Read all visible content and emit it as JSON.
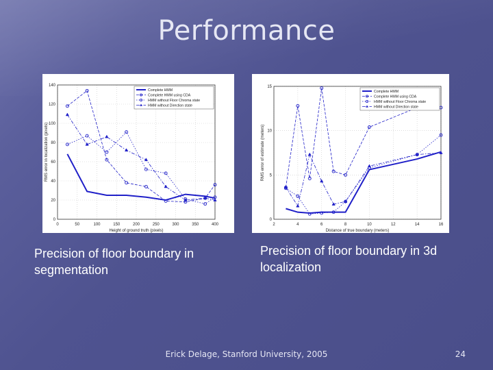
{
  "slide": {
    "title": "Performance",
    "caption_left": "Precision of floor boundary in segmentation",
    "caption_right": "Precision of floor boundary in 3d localization",
    "footer": "Erick Delage, Stanford University, 2005",
    "page_number": "24"
  },
  "colors": {
    "background": "#4f5390",
    "series": "#1f1fc8"
  },
  "chart_data": [
    {
      "type": "line",
      "xlabel": "Height of ground truth (pixels)",
      "ylabel": "RMS error in localization (pixels)",
      "xlim": [
        0,
        400
      ],
      "ylim": [
        0,
        140
      ],
      "xticks": [
        0,
        50,
        100,
        150,
        200,
        250,
        300,
        350,
        400
      ],
      "yticks": [
        0,
        20,
        40,
        60,
        80,
        100,
        120,
        140
      ],
      "grid": true,
      "legend_position": "top-right",
      "series": [
        {
          "name": "Complete HMM",
          "style": "solid",
          "marker": "none",
          "x": [
            25,
            75,
            125,
            175,
            225,
            275,
            325,
            375,
            400
          ],
          "y": [
            68,
            29,
            25,
            25,
            23,
            20,
            26,
            24,
            22
          ]
        },
        {
          "name": "Complete HMM using CDA",
          "style": "dashed",
          "marker": "circle",
          "x": [
            25,
            75,
            125,
            175,
            225,
            275,
            325,
            375,
            400
          ],
          "y": [
            118,
            134,
            62,
            38,
            34,
            19,
            18,
            22,
            36
          ]
        },
        {
          "name": "HMM without Floor Chroma state",
          "style": "dotted",
          "marker": "circle",
          "x": [
            25,
            75,
            125,
            175,
            225,
            275,
            325,
            375,
            400
          ],
          "y": [
            78,
            87,
            70,
            91,
            52,
            48,
            21,
            16,
            23
          ]
        },
        {
          "name": "HMM without Direction state",
          "style": "dashdot",
          "marker": "triangle",
          "x": [
            25,
            75,
            125,
            175,
            225,
            275,
            325,
            375,
            400
          ],
          "y": [
            109,
            78,
            86,
            72,
            62,
            34,
            20,
            22,
            20
          ]
        }
      ]
    },
    {
      "type": "line",
      "xlabel": "Distance of true boundary (meters)",
      "ylabel": "RMS error of estimate (meters)",
      "xlim": [
        2,
        16
      ],
      "ylim": [
        0,
        15
      ],
      "xticks": [
        2,
        4,
        6,
        8,
        10,
        12,
        14,
        16
      ],
      "yticks": [
        0,
        5,
        10,
        15
      ],
      "grid": true,
      "legend_position": "top-right",
      "series": [
        {
          "name": "Complete HMM",
          "style": "solid",
          "marker": "none",
          "x": [
            3,
            4,
            5,
            6,
            7,
            8,
            10,
            14,
            16
          ],
          "y": [
            1.2,
            0.8,
            0.7,
            0.8,
            0.8,
            0.8,
            5.6,
            6.8,
            7.6
          ]
        },
        {
          "name": "Complete HMM using CDA",
          "style": "dashed",
          "marker": "circle",
          "x": [
            3,
            4,
            5,
            6,
            7,
            8,
            10,
            14,
            16
          ],
          "y": [
            3.6,
            12.8,
            4.6,
            14.8,
            5.4,
            5.0,
            10.4,
            12.6,
            12.6
          ]
        },
        {
          "name": "HMM without Floor Chroma state",
          "style": "dotted",
          "marker": "circle",
          "x": [
            3,
            4,
            5,
            6,
            7,
            8,
            10,
            14,
            16
          ],
          "y": [
            3.5,
            2.6,
            0.6,
            0.7,
            0.8,
            2.0,
            5.8,
            7.3,
            9.5
          ]
        },
        {
          "name": "HMM without Direction state",
          "style": "dashdot",
          "marker": "triangle",
          "x": [
            3,
            4,
            5,
            6,
            7,
            8,
            10,
            14,
            16
          ],
          "y": [
            3.6,
            1.5,
            7.3,
            4.3,
            1.7,
            2.0,
            6.0,
            7.3,
            7.5
          ]
        }
      ]
    }
  ]
}
